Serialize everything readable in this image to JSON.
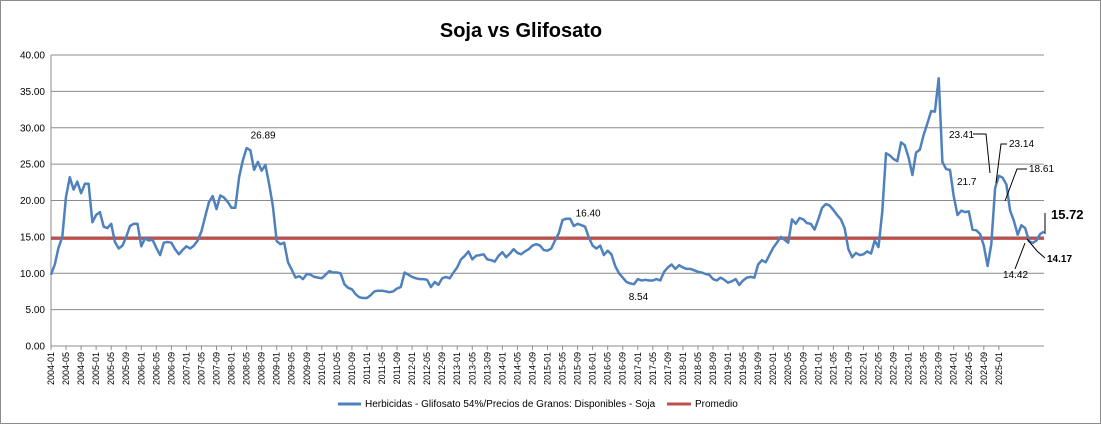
{
  "chart_data": {
    "type": "line",
    "title": "Soja vs Glifosato",
    "xlabel": "",
    "ylabel": "",
    "ylim": [
      0,
      40
    ],
    "y_ticks": [
      "0.00",
      "5.00",
      "10.00",
      "15.00",
      "20.00",
      "25.00",
      "30.00",
      "35.00",
      "40.00"
    ],
    "x_ticks": [
      "2004-01",
      "2004-05",
      "2004-09",
      "2005-01",
      "2005-05",
      "2005-09",
      "2006-01",
      "2006-05",
      "2006-09",
      "2007-01",
      "2007-05",
      "2007-09",
      "2008-01",
      "2008-05",
      "2008-09",
      "2009-01",
      "2009-05",
      "2009-09",
      "2010-01",
      "2010-05",
      "2010-09",
      "2011-01",
      "2011-05",
      "2011-09",
      "2012-01",
      "2012-05",
      "2012-09",
      "2013-01",
      "2013-05",
      "2013-09",
      "2014-01",
      "2014-05",
      "2014-09",
      "2015-01",
      "2015-05",
      "2015-09",
      "2016-01",
      "2016-05",
      "2016-09",
      "2017-01",
      "2017-05",
      "2017-09",
      "2018-01",
      "2018-05",
      "2018-09",
      "2019-01",
      "2019-05",
      "2019-09",
      "2020-01",
      "2020-05",
      "2020-09",
      "2021-01",
      "2021-05",
      "2021-09",
      "2022-01",
      "2022-05",
      "2022-09",
      "2023-01",
      "2023-05",
      "2023-09",
      "2024-01",
      "2024-05",
      "2024-09",
      "2025-01"
    ],
    "grid": true,
    "legend_position": "bottom",
    "series": [
      {
        "name": "Herbicidas - Glifosato 54%/Precios de Granos: Disponibles - Soja",
        "color": "#4f81bd",
        "start": "2004-01",
        "frequency": "monthly",
        "values": [
          9.8,
          11.2,
          13.5,
          15.0,
          20.5,
          23.2,
          21.5,
          22.6,
          21.0,
          22.3,
          22.3,
          17.0,
          18.0,
          18.4,
          16.4,
          16.2,
          16.8,
          14.3,
          13.4,
          13.8,
          15.0,
          16.5,
          16.8,
          16.8,
          13.7,
          14.8,
          14.5,
          14.6,
          13.5,
          12.5,
          14.2,
          14.3,
          14.2,
          13.3,
          12.6,
          13.2,
          13.7,
          13.4,
          13.8,
          14.5,
          15.8,
          17.8,
          19.8,
          20.6,
          18.8,
          20.7,
          20.4,
          19.8,
          19.0,
          19.0,
          23.2,
          25.5,
          27.2,
          26.9,
          24.2,
          25.3,
          24.1,
          24.9,
          22.2,
          19.2,
          14.4,
          14.0,
          14.2,
          11.5,
          10.5,
          9.4,
          9.6,
          9.2,
          9.9,
          9.8,
          9.5,
          9.4,
          9.3,
          9.8,
          10.3,
          10.1,
          10.1,
          10.0,
          8.5,
          8.0,
          7.8,
          7.1,
          6.7,
          6.6,
          6.6,
          7.0,
          7.5,
          7.6,
          7.6,
          7.5,
          7.4,
          7.5,
          7.9,
          8.1,
          10.1,
          9.8,
          9.5,
          9.3,
          9.2,
          9.2,
          9.1,
          8.1,
          8.8,
          8.4,
          9.3,
          9.5,
          9.3,
          10.1,
          10.8,
          11.9,
          12.4,
          13.0,
          11.9,
          12.4,
          12.5,
          12.6,
          11.9,
          11.8,
          11.6,
          12.4,
          12.9,
          12.2,
          12.7,
          13.3,
          12.8,
          12.6,
          13.0,
          13.3,
          13.8,
          14.0,
          13.8,
          13.2,
          13.1,
          13.4,
          14.5,
          15.5,
          17.3,
          17.5,
          17.5,
          16.5,
          16.8,
          16.6,
          16.4,
          14.9,
          13.8,
          13.4,
          13.8,
          12.5,
          13.1,
          12.6,
          11.0,
          10.0,
          9.4,
          8.8,
          8.6,
          8.5,
          9.2,
          9.0,
          9.1,
          9.0,
          9.0,
          9.2,
          9.0,
          10.2,
          10.8,
          11.2,
          10.6,
          11.1,
          10.8,
          10.6,
          10.6,
          10.4,
          10.2,
          10.1,
          9.9,
          9.8,
          9.2,
          9.0,
          9.4,
          9.1,
          8.7,
          8.9,
          9.2,
          8.4,
          9.0,
          9.4,
          9.5,
          9.4,
          11.2,
          11.8,
          11.5,
          12.5,
          13.5,
          14.2,
          15.0,
          14.6,
          14.2,
          17.4,
          16.8,
          17.6,
          17.4,
          16.9,
          16.8,
          16.0,
          17.4,
          19.0,
          19.5,
          19.3,
          18.7,
          18.0,
          17.4,
          16.2,
          13.3,
          12.2,
          12.8,
          12.5,
          12.6,
          13.0,
          12.7,
          14.5,
          13.6,
          18.5,
          26.5,
          26.2,
          25.7,
          25.4,
          28.0,
          27.6,
          25.9,
          23.5,
          26.6,
          27.0,
          29.0,
          30.6,
          32.3,
          32.2,
          36.8,
          25.3,
          24.3,
          24.2,
          20.6,
          18.0,
          18.6,
          18.4,
          18.5,
          16.0,
          15.9,
          15.4,
          13.8,
          11.0,
          14.0,
          21.7,
          23.4,
          23.14,
          22.2,
          18.61,
          17.2,
          15.3,
          16.6,
          16.2,
          14.42,
          14.17,
          14.5,
          15.4,
          15.72
        ]
      },
      {
        "name": "Promedio",
        "color": "#c0504d",
        "constant": 14.8
      }
    ],
    "annotations": [
      {
        "text": "26.89",
        "x": "2008-05",
        "y": 26.89
      },
      {
        "text": "16.40",
        "x": "2015-09",
        "y": 16.4
      },
      {
        "text": "8.54",
        "x": "2016-09",
        "y": 8.54
      },
      {
        "text": "23.41",
        "x": "2024-01",
        "y": 23.41
      },
      {
        "text": "23.14",
        "x": "2024-02",
        "y": 23.14
      },
      {
        "text": "21.7",
        "x": "2023-12",
        "y": 21.7
      },
      {
        "text": "18.61",
        "x": "2024-04",
        "y": 18.61
      },
      {
        "text": "14.42",
        "x": "2024-09",
        "y": 14.42
      },
      {
        "text": "14.17",
        "x": "2024-10",
        "y": 14.17
      },
      {
        "text": "15.72",
        "x": "2025-01",
        "y": 15.72
      }
    ]
  }
}
